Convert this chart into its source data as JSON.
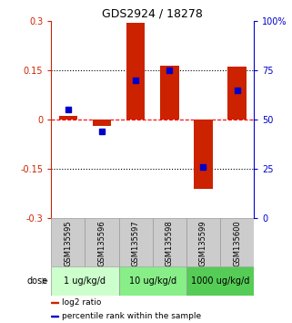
{
  "title": "GDS2924 / 18278",
  "samples": [
    "GSM135595",
    "GSM135596",
    "GSM135597",
    "GSM135598",
    "GSM135599",
    "GSM135600"
  ],
  "log2_ratio": [
    0.01,
    -0.02,
    0.295,
    0.165,
    -0.21,
    0.16
  ],
  "percentile_rank": [
    55,
    44,
    70,
    75,
    26,
    65
  ],
  "ylim_left": [
    -0.3,
    0.3
  ],
  "ylim_right": [
    0,
    100
  ],
  "yticks_left": [
    -0.3,
    -0.15,
    0,
    0.15,
    0.3
  ],
  "yticks_right": [
    0,
    25,
    50,
    75,
    100
  ],
  "ytick_labels_left": [
    "-0.3",
    "-0.15",
    "0",
    "0.15",
    "0.3"
  ],
  "ytick_labels_right": [
    "0",
    "25",
    "50",
    "75",
    "100%"
  ],
  "hlines": [
    0.15,
    0.0,
    -0.15
  ],
  "hlines_styles": [
    "dotted",
    "dashed",
    "dotted"
  ],
  "hlines_colors": [
    "black",
    "red",
    "black"
  ],
  "bar_color": "#cc2200",
  "marker_color": "#0000cc",
  "dose_groups": [
    {
      "label": "1 ug/kg/d",
      "samples": [
        0,
        1
      ],
      "color": "#ccffcc"
    },
    {
      "label": "10 ug/kg/d",
      "samples": [
        2,
        3
      ],
      "color": "#88ee88"
    },
    {
      "label": "1000 ug/kg/d",
      "samples": [
        4,
        5
      ],
      "color": "#55cc55"
    }
  ],
  "dose_label": "dose",
  "legend_items": [
    {
      "color": "#cc2200",
      "label": "log2 ratio"
    },
    {
      "color": "#0000cc",
      "label": "percentile rank within the sample"
    }
  ],
  "left_axis_color": "#cc2200",
  "right_axis_color": "#0000cc",
  "bar_width": 0.55,
  "sample_bg_color": "#cccccc",
  "sample_border_color": "#999999"
}
